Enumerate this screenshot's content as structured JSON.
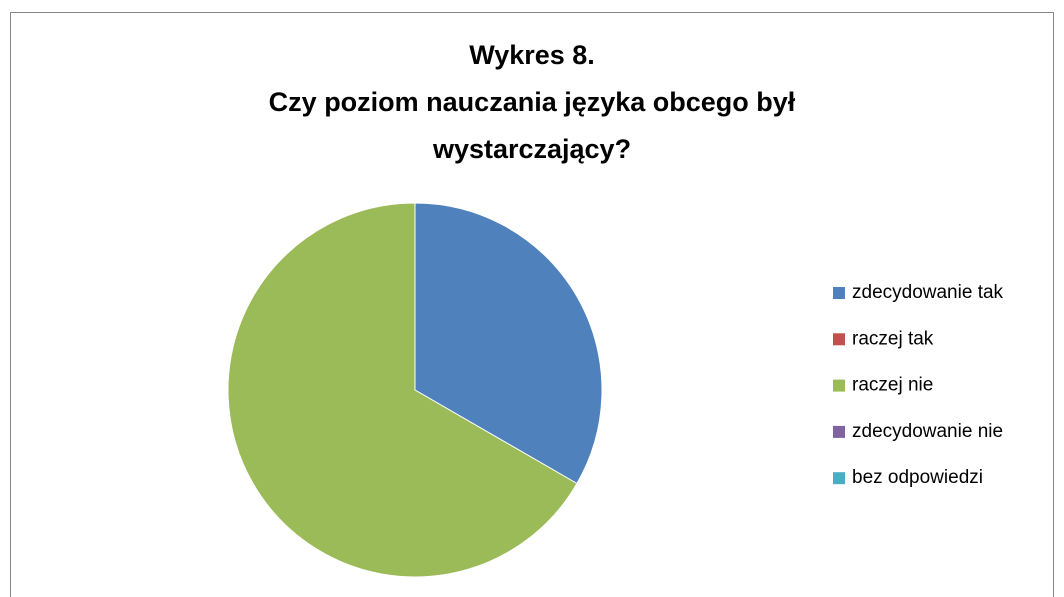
{
  "chart_data": {
    "type": "pie",
    "title": [
      "Wykres 8.",
      "Czy poziom nauczania języka obcego był",
      "wystarczający?"
    ],
    "categories": [
      "zdecydowanie tak",
      "raczej tak",
      "raczej nie",
      "zdecydowanie nie",
      "bez odpowiedzi"
    ],
    "values": [
      1,
      0,
      2,
      0,
      0
    ],
    "colors": [
      "#4f81bd",
      "#c0504d",
      "#9bbb59",
      "#8064a2",
      "#4bacc6"
    ],
    "legend": "right"
  }
}
